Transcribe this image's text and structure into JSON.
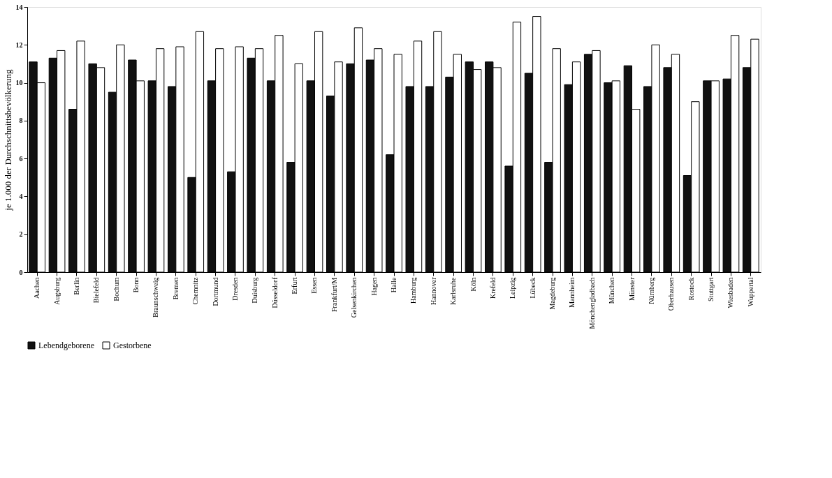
{
  "chart_data": {
    "type": "bar",
    "ylabel": "je 1.000 der Durchschnittsbevölkerung",
    "categories": [
      "Aachen",
      "Augsburg",
      "Berlin",
      "Bielefeld",
      "Bochum",
      "Bonn",
      "Braunschweig",
      "Bremen",
      "Chemnitz",
      "Dortmund",
      "Dresden",
      "Duisburg",
      "Düsseldorf",
      "Erfurt",
      "Essen",
      "Frankfurt/M",
      "Gelsenkirchen",
      "Hagen",
      "Halle",
      "Hamburg",
      "Hannover",
      "Karlsruhe",
      "Köln",
      "Krefeld",
      "Leipzig",
      "Lübeck",
      "Magdeburg",
      "Mannheim",
      "Mönchengladbach",
      "München",
      "Münster",
      "Nürnberg",
      "Oberhausen",
      "Rostock",
      "Stuttgart",
      "Wiesbaden",
      "Wuppertal"
    ],
    "series": [
      {
        "name": "Lebendgeborene",
        "color": "#111111",
        "values": [
          11.1,
          11.3,
          8.6,
          11.0,
          9.5,
          11.2,
          10.1,
          9.8,
          5.0,
          10.1,
          5.3,
          11.3,
          10.1,
          5.8,
          10.1,
          9.3,
          11.0,
          11.2,
          6.2,
          9.8,
          9.8,
          10.3,
          11.1,
          11.1,
          5.6,
          10.5,
          5.8,
          9.9,
          11.5,
          10.0,
          10.9,
          9.8,
          10.8,
          5.1,
          10.1,
          10.2,
          10.8
        ]
      },
      {
        "name": "Gestorbene",
        "color": "#ffffff",
        "values": [
          10.0,
          11.7,
          12.2,
          10.8,
          12.0,
          10.1,
          11.8,
          11.9,
          12.7,
          11.8,
          11.9,
          11.8,
          12.5,
          11.0,
          12.7,
          11.1,
          12.9,
          11.8,
          11.5,
          12.2,
          12.7,
          11.5,
          10.7,
          10.8,
          13.2,
          13.5,
          11.8,
          11.1,
          11.7,
          10.1,
          8.6,
          12.0,
          11.5,
          9.0,
          10.1,
          12.5,
          12.3
        ]
      }
    ],
    "ylim": [
      0,
      14
    ],
    "yticks": [
      0,
      2,
      4,
      6,
      8,
      10,
      12,
      14
    ],
    "grid": false,
    "legend": "bottom"
  }
}
